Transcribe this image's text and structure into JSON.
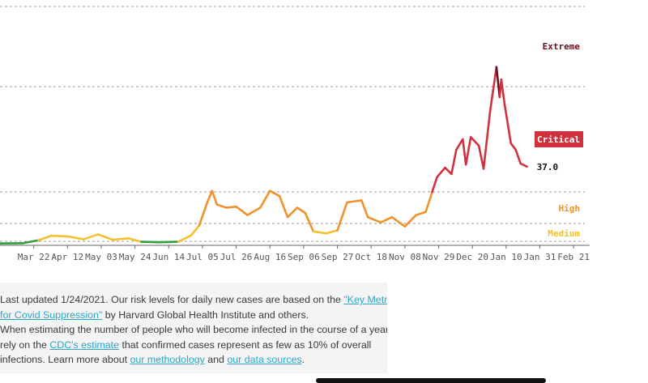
{
  "chart_data": {
    "type": "line",
    "title": "",
    "xlabel": "",
    "ylabel": "",
    "x_tick_labels": [
      "Mar 22",
      "Apr 12",
      "May 03",
      "May 24",
      "Jun 14",
      "Jul 05",
      "Jul 26",
      "Aug 16",
      "Sep 06",
      "Sep 27",
      "Oct 18",
      "Nov 08",
      "Nov 29",
      "Dec 20",
      "Jan 10",
      "Jan 31",
      "Feb 21"
    ],
    "x_start": "2020-03-01",
    "x_end": "2021-02-28",
    "ylim": [
      0,
      120
    ],
    "grid": "horizontal-dashed",
    "risk_levels": [
      {
        "label": "Medium",
        "min": 1,
        "max": 10,
        "color": "#f2c12e"
      },
      {
        "label": "High",
        "min": 10,
        "max": 25,
        "color": "#f0922b"
      },
      {
        "label": "Critical",
        "min": 25,
        "max": 75,
        "color": "#d0313d"
      },
      {
        "label": "Extreme",
        "min": 75,
        "max": 120,
        "color": "#6b0e1e"
      }
    ],
    "series": [
      {
        "values": [
          {
            "date": "2020-03-01",
            "value": 0.1
          },
          {
            "date": "2020-03-15",
            "value": 0.2
          },
          {
            "date": "2020-03-25",
            "value": 1.5
          },
          {
            "date": "2020-04-02",
            "value": 3.8
          },
          {
            "date": "2020-04-12",
            "value": 3.5
          },
          {
            "date": "2020-04-22",
            "value": 2.0
          },
          {
            "date": "2020-05-01",
            "value": 4.5
          },
          {
            "date": "2020-05-10",
            "value": 1.8
          },
          {
            "date": "2020-05-20",
            "value": 2.5
          },
          {
            "date": "2020-05-28",
            "value": 0.8
          },
          {
            "date": "2020-06-08",
            "value": 0.6
          },
          {
            "date": "2020-06-20",
            "value": 0.8
          },
          {
            "date": "2020-06-28",
            "value": 4.0
          },
          {
            "date": "2020-07-03",
            "value": 9.0
          },
          {
            "date": "2020-07-08",
            "value": 20.0
          },
          {
            "date": "2020-07-11",
            "value": 25.5
          },
          {
            "date": "2020-07-14",
            "value": 19.0
          },
          {
            "date": "2020-07-20",
            "value": 17.5
          },
          {
            "date": "2020-07-26",
            "value": 18.0
          },
          {
            "date": "2020-08-02",
            "value": 14.0
          },
          {
            "date": "2020-08-10",
            "value": 17.5
          },
          {
            "date": "2020-08-16",
            "value": 25.5
          },
          {
            "date": "2020-08-22",
            "value": 23.0
          },
          {
            "date": "2020-08-27",
            "value": 13.0
          },
          {
            "date": "2020-09-02",
            "value": 17.5
          },
          {
            "date": "2020-09-07",
            "value": 15.0
          },
          {
            "date": "2020-09-12",
            "value": 6.0
          },
          {
            "date": "2020-09-20",
            "value": 5.0
          },
          {
            "date": "2020-09-27",
            "value": 6.5
          },
          {
            "date": "2020-10-03",
            "value": 20.0
          },
          {
            "date": "2020-10-12",
            "value": 21.0
          },
          {
            "date": "2020-10-16",
            "value": 13.0
          },
          {
            "date": "2020-10-24",
            "value": 10.5
          },
          {
            "date": "2020-10-31",
            "value": 13.0
          },
          {
            "date": "2020-11-08",
            "value": 8.5
          },
          {
            "date": "2020-11-15",
            "value": 14.0
          },
          {
            "date": "2020-11-21",
            "value": 15.5
          },
          {
            "date": "2020-11-25",
            "value": 25.0
          },
          {
            "date": "2020-11-28",
            "value": 32.0
          },
          {
            "date": "2020-12-03",
            "value": 36.5
          },
          {
            "date": "2020-12-07",
            "value": 33.5
          },
          {
            "date": "2020-12-10",
            "value": 45.0
          },
          {
            "date": "2020-12-14",
            "value": 50.0
          },
          {
            "date": "2020-12-16",
            "value": 38.0
          },
          {
            "date": "2020-12-19",
            "value": 51.0
          },
          {
            "date": "2020-12-24",
            "value": 47.0
          },
          {
            "date": "2020-12-27",
            "value": 36.0
          },
          {
            "date": "2020-12-31",
            "value": 63.0
          },
          {
            "date": "2021-01-04",
            "value": 86.0
          },
          {
            "date": "2021-01-06",
            "value": 70.0
          },
          {
            "date": "2021-01-07",
            "value": 79.0
          },
          {
            "date": "2021-01-09",
            "value": 67.0
          },
          {
            "date": "2021-01-13",
            "value": 48.0
          },
          {
            "date": "2021-01-16",
            "value": 45.0
          },
          {
            "date": "2021-01-19",
            "value": 38.5
          },
          {
            "date": "2021-01-23",
            "value": 37.0
          }
        ]
      }
    ],
    "annotations": {
      "latest_value_label": "37.0",
      "current_level": "Critical"
    }
  },
  "footnote": {
    "text_1": "Last updated 1/24/2021. Our risk levels for daily new cases are based on the ",
    "link_1": "\"Key Metrics for Covid Suppression\"",
    "link_1_part_a": "\"Key Metrics",
    "link_1_part_b": "for Covid Suppression\"",
    "text_2": " by Harvard Global Health Institute and others.",
    "text_3": "When estimating the number of people who will become infected in the course of a year, we",
    "text_4": "rely on the ",
    "link_2": "CDC's estimate",
    "text_5": " that confirmed cases represent as few as 10% of overall",
    "text_6": "infections. Learn more about ",
    "link_3": "our methodology",
    "text_7": " and ",
    "link_4": "our data sources",
    "text_8": "."
  }
}
